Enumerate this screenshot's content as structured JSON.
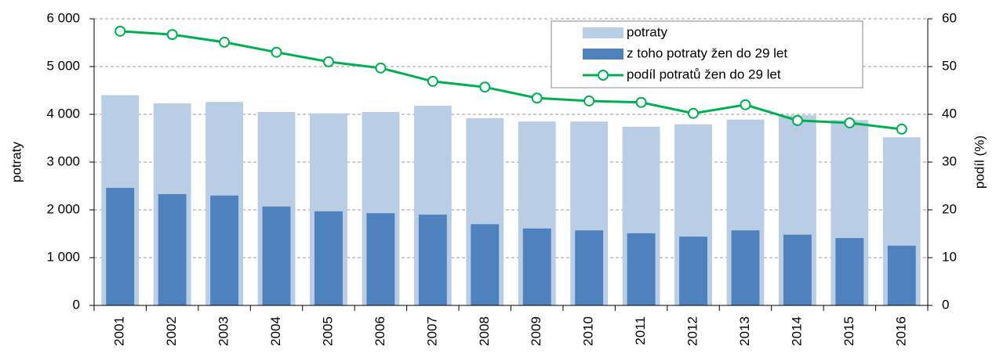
{
  "chart_data": {
    "type": "bar_line",
    "categories": [
      "2001",
      "2002",
      "2003",
      "2004",
      "2005",
      "2006",
      "2007",
      "2008",
      "2009",
      "2010",
      "2011",
      "2012",
      "2013",
      "2014",
      "2015",
      "2016"
    ],
    "series": [
      {
        "name": "potraty",
        "color": "#b9cde5",
        "type": "bar",
        "values": [
          4400,
          4230,
          4260,
          4050,
          4020,
          4050,
          4180,
          3920,
          3850,
          3850,
          3740,
          3790,
          3890,
          3980,
          3880,
          3520
        ]
      },
      {
        "name": "z toho potraty žen do 29 let",
        "color": "#4f81bd",
        "type": "bar",
        "values": [
          2460,
          2330,
          2300,
          2070,
          1970,
          1930,
          1900,
          1700,
          1610,
          1570,
          1510,
          1440,
          1570,
          1480,
          1410,
          1250
        ]
      },
      {
        "name": "podíl potratů žen do 29 let",
        "color": "#00b050",
        "type": "line",
        "axis": "y2",
        "values": [
          57.4,
          56.7,
          55.1,
          53.0,
          51.0,
          49.7,
          46.9,
          45.7,
          43.4,
          42.8,
          42.5,
          40.2,
          42.0,
          38.7,
          38.2,
          36.9
        ]
      }
    ],
    "ylabel": "potraty",
    "y2label": "podíl (%)",
    "ylim": [
      0,
      6000
    ],
    "yticks": [
      0,
      {
        "value": 1000,
        "label": "1 000"
      },
      {
        "value": 2000,
        "label": "2 000"
      },
      {
        "value": 3000,
        "label": "3 000"
      },
      {
        "value": 4000,
        "label": "4 000"
      },
      {
        "value": 5000,
        "label": "5 000"
      },
      {
        "value": 6000,
        "label": "6 000"
      }
    ],
    "y2lim": [
      0,
      60
    ],
    "y2ticks": [
      0,
      10,
      20,
      30,
      40,
      50,
      60
    ],
    "grid": true,
    "legend": "top-right"
  }
}
